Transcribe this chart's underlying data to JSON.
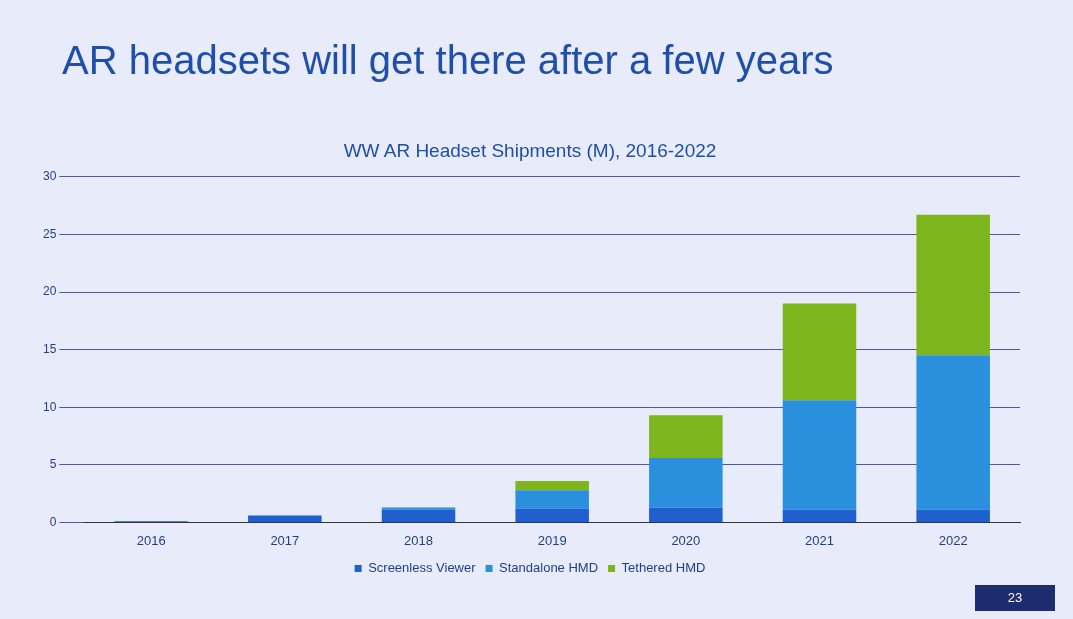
{
  "chart_data": {
    "type": "bar",
    "stacked": true,
    "title": "AR headsets will get there after a few years",
    "subtitle": "WW AR Headset Shipments (M), 2016-2022",
    "categories": [
      "2016",
      "2017",
      "2018",
      "2019",
      "2020",
      "2021",
      "2022"
    ],
    "series": [
      {
        "name": "Screenless Viewer",
        "color": "#1f5fd0",
        "values": [
          0.1,
          0.6,
          1.1,
          1.2,
          1.3,
          1.1,
          1.1
        ]
      },
      {
        "name": "Standalone HMD",
        "color": "#2a8fdc",
        "values": [
          0,
          0,
          0.2,
          1.6,
          4.3,
          9.5,
          13.4
        ]
      },
      {
        "name": "Tethered HMD",
        "color": "#7db51c",
        "values": [
          0,
          0,
          0,
          0.8,
          3.7,
          8.4,
          12.2
        ]
      }
    ],
    "ylim": [
      0,
      30
    ],
    "yticks": [
      0,
      5,
      10,
      15,
      20,
      25,
      30
    ],
    "grid": "y",
    "legend": "bottom",
    "annotations": [
      "23"
    ]
  }
}
